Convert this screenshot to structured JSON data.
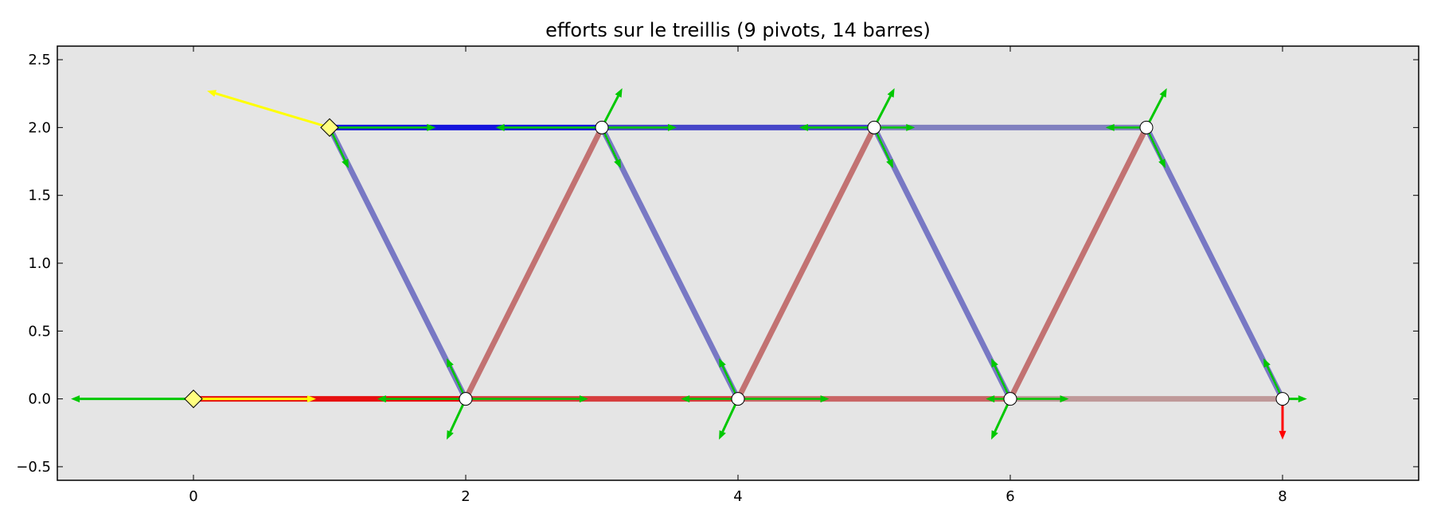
{
  "chart_data": {
    "type": "truss_force_diagram",
    "title": "efforts sur le treillis (9 pivots, 14 barres)",
    "xlim": [
      -1,
      9
    ],
    "ylim": [
      -0.6,
      2.6
    ],
    "xticks": [
      0,
      2,
      4,
      6,
      8
    ],
    "yticks": [
      -0.5,
      0.0,
      0.5,
      1.0,
      1.5,
      2.0,
      2.5
    ],
    "xtick_labels": [
      "0",
      "2",
      "4",
      "6",
      "8"
    ],
    "ytick_labels": [
      "−0.5",
      "0.0",
      "0.5",
      "1.0",
      "1.5",
      "2.0",
      "2.5"
    ],
    "background_color": "#e5e5e5",
    "pivots": [
      {
        "x": 0,
        "y": 0,
        "kind": "support"
      },
      {
        "x": 2,
        "y": 0,
        "kind": "free"
      },
      {
        "x": 4,
        "y": 0,
        "kind": "free"
      },
      {
        "x": 6,
        "y": 0,
        "kind": "free"
      },
      {
        "x": 8,
        "y": 0,
        "kind": "free"
      },
      {
        "x": 1,
        "y": 2,
        "kind": "support"
      },
      {
        "x": 3,
        "y": 2,
        "kind": "free"
      },
      {
        "x": 5,
        "y": 2,
        "kind": "free"
      },
      {
        "x": 7,
        "y": 2,
        "kind": "free"
      }
    ],
    "bars": [
      {
        "from": 0,
        "to": 1,
        "color": "#e60f0f"
      },
      {
        "from": 1,
        "to": 2,
        "color": "#d63d3d"
      },
      {
        "from": 2,
        "to": 3,
        "color": "#c96565"
      },
      {
        "from": 3,
        "to": 4,
        "color": "#bf9999"
      },
      {
        "from": 5,
        "to": 6,
        "color": "#1414dc"
      },
      {
        "from": 6,
        "to": 7,
        "color": "#4646c8"
      },
      {
        "from": 7,
        "to": 8,
        "color": "#8080bf"
      },
      {
        "from": 5,
        "to": 1,
        "color": "#7878c4"
      },
      {
        "from": 1,
        "to": 6,
        "color": "#c27272"
      },
      {
        "from": 6,
        "to": 2,
        "color": "#7878c4"
      },
      {
        "from": 2,
        "to": 7,
        "color": "#c27272"
      },
      {
        "from": 7,
        "to": 3,
        "color": "#7878c4"
      },
      {
        "from": 3,
        "to": 8,
        "color": "#c27272"
      },
      {
        "from": 8,
        "to": 4,
        "color": "#7878c4"
      }
    ],
    "external_forces": [
      {
        "x": 0,
        "y": 0,
        "dx": 0.9,
        "dy": 0,
        "color": "#ffff00"
      },
      {
        "x": 1,
        "y": 2,
        "dx": -0.9,
        "dy": 0.27,
        "color": "#ffff00"
      },
      {
        "x": 8,
        "y": 0,
        "dx": 0,
        "dy": -0.3,
        "color": "#ff0000"
      },
      {
        "x": 0,
        "y": 0,
        "dx": -0.9,
        "dy": 0,
        "color": "#00c800"
      },
      {
        "x": 8,
        "y": 0,
        "dx": 0.18,
        "dy": 0,
        "color": "#00c800"
      },
      {
        "x": 2,
        "y": 0,
        "dx": -0.14,
        "dy": -0.3,
        "color": "#00c800"
      },
      {
        "x": 4,
        "y": 0,
        "dx": -0.14,
        "dy": -0.3,
        "color": "#00c800"
      },
      {
        "x": 6,
        "y": 0,
        "dx": -0.14,
        "dy": -0.3,
        "color": "#00c800"
      },
      {
        "x": 3,
        "y": 2,
        "dx": 0.15,
        "dy": 0.29,
        "color": "#00c800"
      },
      {
        "x": 5,
        "y": 2,
        "dx": 0.15,
        "dy": 0.29,
        "color": "#00c800"
      },
      {
        "x": 7,
        "y": 2,
        "dx": 0.15,
        "dy": 0.29,
        "color": "#00c800"
      }
    ],
    "bar_force_arrows": [
      {
        "x": 1,
        "y": 2,
        "dx": 0.78,
        "dy": 0,
        "color": "#00c800"
      },
      {
        "x": 3,
        "y": 2,
        "dx": -0.78,
        "dy": 0,
        "color": "#00c800"
      },
      {
        "x": 3,
        "y": 2,
        "dx": 0.55,
        "dy": 0,
        "color": "#00c800"
      },
      {
        "x": 5,
        "y": 2,
        "dx": -0.55,
        "dy": 0,
        "color": "#00c800"
      },
      {
        "x": 5,
        "y": 2,
        "dx": 0.3,
        "dy": 0,
        "color": "#00c800"
      },
      {
        "x": 7,
        "y": 2,
        "dx": -0.3,
        "dy": 0,
        "color": "#00c800"
      },
      {
        "x": 2,
        "y": 0,
        "dx": -0.65,
        "dy": 0,
        "color": "#00c800"
      },
      {
        "x": 2,
        "y": 0,
        "dx": 0.9,
        "dy": 0,
        "color": "#00c800"
      },
      {
        "x": 4,
        "y": 0,
        "dx": -0.42,
        "dy": 0,
        "color": "#00c800"
      },
      {
        "x": 4,
        "y": 0,
        "dx": 0.67,
        "dy": 0,
        "color": "#00c800"
      },
      {
        "x": 6,
        "y": 0,
        "dx": -0.18,
        "dy": 0,
        "color": "#00c800"
      },
      {
        "x": 6,
        "y": 0,
        "dx": 0.43,
        "dy": 0,
        "color": "#00c800"
      },
      {
        "x": 1,
        "y": 2,
        "dx": 0.14,
        "dy": -0.3,
        "color": "#00c800"
      },
      {
        "x": 3,
        "y": 2,
        "dx": 0.14,
        "dy": -0.3,
        "color": "#00c800"
      },
      {
        "x": 5,
        "y": 2,
        "dx": 0.14,
        "dy": -0.3,
        "color": "#00c800"
      },
      {
        "x": 7,
        "y": 2,
        "dx": 0.14,
        "dy": -0.3,
        "color": "#00c800"
      },
      {
        "x": 2,
        "y": 0,
        "dx": -0.14,
        "dy": 0.3,
        "color": "#00c800"
      },
      {
        "x": 4,
        "y": 0,
        "dx": -0.14,
        "dy": 0.3,
        "color": "#00c800"
      },
      {
        "x": 6,
        "y": 0,
        "dx": -0.14,
        "dy": 0.3,
        "color": "#00c800"
      },
      {
        "x": 8,
        "y": 0,
        "dx": -0.14,
        "dy": 0.3,
        "color": "#00c800"
      }
    ]
  }
}
